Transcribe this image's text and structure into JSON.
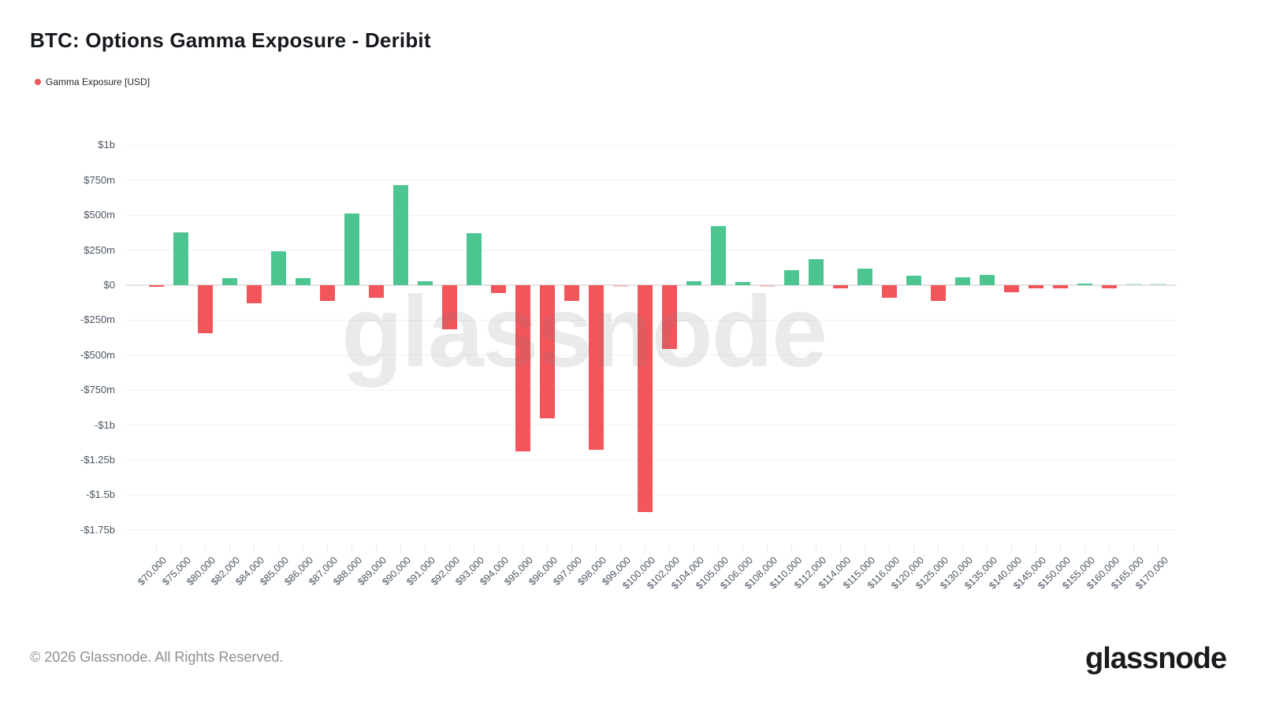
{
  "header": {
    "title": "BTC: Options Gamma Exposure - Deribit",
    "legend_label": "Gamma Exposure [USD]",
    "legend_color": "#f2555a"
  },
  "watermark": "glassnode",
  "footer": {
    "copyright": "© 2026 Glassnode. All Rights Reserved.",
    "logo": "glassnode"
  },
  "chart_data": {
    "type": "bar",
    "title": "BTC: Options Gamma Exposure - Deribit",
    "series_name": "Gamma Exposure [USD]",
    "value_unit": "USD, millions",
    "xlabel": "",
    "ylabel": "",
    "grid": "horizontal",
    "legend_position": "top-left",
    "ylim_millions": [
      -1750,
      1000
    ],
    "colors": {
      "positive": "#4dc591",
      "negative": "#f2555a"
    },
    "yticks": [
      {
        "label": "$1b",
        "value": 1000
      },
      {
        "label": "$750m",
        "value": 750
      },
      {
        "label": "$500m",
        "value": 500
      },
      {
        "label": "$250m",
        "value": 250
      },
      {
        "label": "$0",
        "value": 0
      },
      {
        "label": "-$250m",
        "value": -250
      },
      {
        "label": "-$500m",
        "value": -500
      },
      {
        "label": "-$750m",
        "value": -750
      },
      {
        "label": "-$1b",
        "value": -1000
      },
      {
        "label": "-$1.25b",
        "value": -1250
      },
      {
        "label": "-$1.5b",
        "value": -1500
      },
      {
        "label": "-$1.75b",
        "value": -1750
      }
    ],
    "categories": [
      "$70,000",
      "$75,000",
      "$80,000",
      "$82,000",
      "$84,000",
      "$85,000",
      "$86,000",
      "$87,000",
      "$88,000",
      "$89,000",
      "$90,000",
      "$91,000",
      "$92,000",
      "$93,000",
      "$94,000",
      "$95,000",
      "$96,000",
      "$97,000",
      "$98,000",
      "$99,000",
      "$100,000",
      "$102,000",
      "$104,000",
      "$105,000",
      "$106,000",
      "$108,000",
      "$110,000",
      "$112,000",
      "$114,000",
      "$115,000",
      "$116,000",
      "$120,000",
      "$125,000",
      "$130,000",
      "$135,000",
      "$140,000",
      "$145,000",
      "$150,000",
      "$155,000",
      "$160,000",
      "$165,000",
      "$170,000"
    ],
    "values": [
      -10,
      375,
      -345,
      50,
      -130,
      245,
      50,
      -115,
      515,
      -90,
      715,
      30,
      -315,
      370,
      -55,
      -1190,
      -950,
      -115,
      -1175,
      -8,
      -1620,
      -455,
      30,
      425,
      20,
      -10,
      110,
      185,
      -20,
      120,
      -90,
      70,
      -115,
      55,
      75,
      -50,
      -20,
      -25,
      10,
      -25,
      5,
      2
    ],
    "muted_points": [
      "$99,000",
      "$108,000",
      "$165,000",
      "$170,000"
    ]
  }
}
